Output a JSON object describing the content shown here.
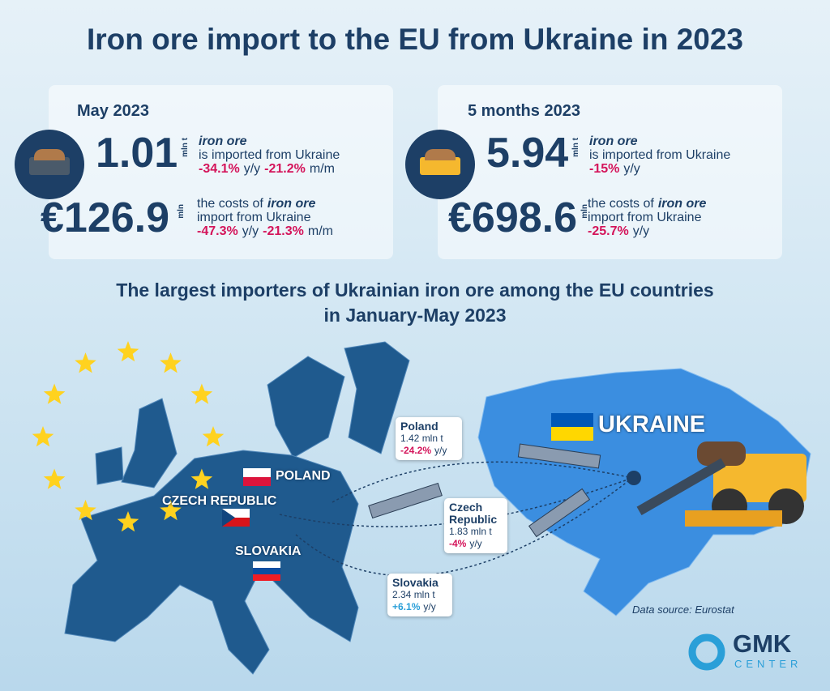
{
  "header": {
    "title": "Iron ore import to the EU from Ukraine in 2023"
  },
  "summary": [
    {
      "period": "May 2023",
      "volume": {
        "value": "1.01",
        "unit": "mln t",
        "product": "iron ore",
        "text": "is imported from Ukraine",
        "changes": [
          {
            "value": "-34.1%",
            "basis": "y/y"
          },
          {
            "value": "-21.2%",
            "basis": "m/m"
          }
        ]
      },
      "cost": {
        "value": "€126.9",
        "unit": "mln",
        "text_before": "the costs of",
        "product": "iron ore",
        "text_after": "import from Ukraine",
        "changes": [
          {
            "value": "-47.3%",
            "basis": "y/y"
          },
          {
            "value": "-21.3%",
            "basis": "m/m"
          }
        ]
      }
    },
    {
      "period": "5 months 2023",
      "volume": {
        "value": "5.94",
        "unit": "mln t",
        "product": "iron ore",
        "text": "is imported from Ukraine",
        "changes": [
          {
            "value": "-15%",
            "basis": "y/y"
          }
        ]
      },
      "cost": {
        "value": "€698.6",
        "unit": "mln",
        "text_before": "the costs of",
        "product": "iron ore",
        "text_after": "import from Ukraine",
        "changes": [
          {
            "value": "-25.7%",
            "basis": "y/y"
          }
        ]
      }
    }
  ],
  "importers": {
    "title_lines": [
      "The largest importers of Ukrainian iron ore among the EU countries",
      "in January-May 2023"
    ],
    "map_labels": [
      "POLAND",
      "CZECH REPUBLIC",
      "SLOVAKIA",
      "UKRAINE"
    ],
    "callouts": [
      {
        "country": "Poland",
        "volume": "1.42 mln t",
        "change": "-24.2%",
        "basis": "y/y"
      },
      {
        "country": "Czech Republic",
        "volume": "1.83 mln t",
        "change": "-4%",
        "basis": "y/y"
      },
      {
        "country": "Slovakia",
        "volume": "2.34 mln t",
        "change": "+6.1%",
        "basis": "y/y"
      }
    ]
  },
  "source": "Data source: Eurostat",
  "logo": {
    "name": "GMK",
    "tagline": "CENTER"
  }
}
